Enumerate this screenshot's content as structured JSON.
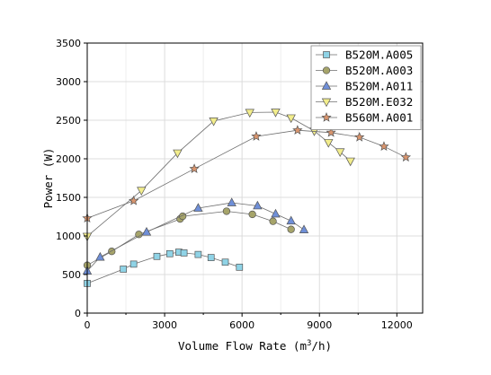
{
  "chart_data": {
    "type": "line",
    "xlabel": "Volume Flow Rate (m³/h)",
    "ylabel": "Power (W)",
    "xlim": [
      0,
      13000
    ],
    "ylim": [
      0,
      3500
    ],
    "xticks": [
      0,
      3000,
      6000,
      9000,
      12000
    ],
    "yticks": [
      0,
      500,
      1000,
      1500,
      2000,
      2500,
      3000,
      3500
    ],
    "grid": true,
    "legend_position": "top-right",
    "series": [
      {
        "name": "B520M.A005",
        "marker": "square",
        "color": "#8fd3e6",
        "x": [
          0,
          1400,
          1800,
          2700,
          3200,
          3550,
          3750,
          4300,
          4800,
          5350,
          5900
        ],
        "y": [
          385,
          570,
          635,
          735,
          770,
          790,
          780,
          760,
          720,
          660,
          595
        ]
      },
      {
        "name": "B520M.A003",
        "marker": "circle",
        "color": "#a6a46a",
        "x": [
          0,
          950,
          2000,
          3600,
          3700,
          5400,
          6400,
          7200,
          7900
        ],
        "y": [
          620,
          800,
          1020,
          1220,
          1255,
          1320,
          1280,
          1190,
          1085
        ]
      },
      {
        "name": "B520M.A011",
        "marker": "triangle-up",
        "color": "#6f8fd8",
        "x": [
          0,
          500,
          2300,
          4300,
          5600,
          6600,
          7300,
          7900,
          8400
        ],
        "y": [
          545,
          725,
          1050,
          1360,
          1430,
          1390,
          1285,
          1195,
          1080
        ]
      },
      {
        "name": "B520M.E032",
        "marker": "triangle-down",
        "color": "#f2ed8c",
        "x": [
          0,
          2100,
          3500,
          4900,
          6300,
          7300,
          7900,
          8800,
          9350,
          9800,
          10200
        ],
        "y": [
          995,
          1590,
          2075,
          2490,
          2600,
          2605,
          2530,
          2360,
          2210,
          2090,
          1970
        ]
      },
      {
        "name": "B560M.A001",
        "marker": "star",
        "color": "#d9956e",
        "x": [
          0,
          1800,
          4150,
          6550,
          8150,
          9450,
          10550,
          11500,
          12350
        ],
        "y": [
          1230,
          1455,
          1870,
          2290,
          2370,
          2340,
          2280,
          2160,
          2020
        ]
      }
    ]
  },
  "axes": {
    "ylabel_prefix": "Power (W)",
    "xlabel_pre": "Volume Flow Rate (m",
    "xlabel_sup": "3",
    "xlabel_post": "/h)"
  }
}
